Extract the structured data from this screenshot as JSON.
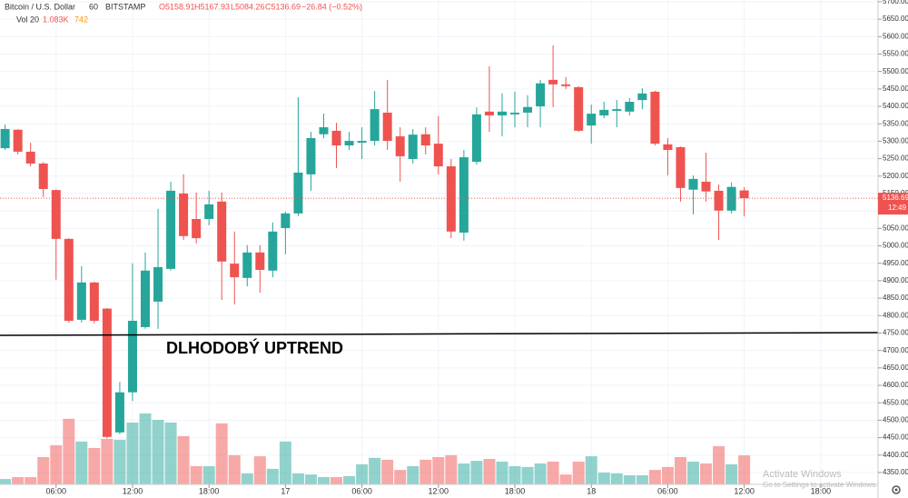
{
  "header": {
    "symbol": "Bitcoin / U.S. Dollar",
    "interval": "60",
    "exchange": "BITSTAMP",
    "open": "O5158.91",
    "high": "H5167.93",
    "low": "L5084.26",
    "close": "C5136.69",
    "change": "−26.84 (−0.52%)",
    "volume_label": "Vol 20",
    "volume_value": "1.083K",
    "volume_ma": "742"
  },
  "chart_data": {
    "type": "candlestick",
    "x": [
      2,
      3,
      4,
      5,
      6,
      7,
      8,
      9,
      10,
      11,
      12,
      13,
      14,
      15,
      16,
      17,
      18,
      19,
      20,
      21,
      22,
      23,
      24,
      25,
      26,
      27,
      28,
      29,
      30,
      31,
      32,
      33,
      34,
      35,
      36,
      37,
      38,
      39,
      40,
      41,
      42,
      43,
      44,
      45,
      46,
      47,
      48,
      49,
      50,
      51,
      52,
      53,
      54,
      55,
      56,
      57,
      58,
      59,
      60
    ],
    "open": [
      5280,
      5333,
      5270,
      5236,
      5160,
      5020,
      4788,
      4895,
      4820,
      4465,
      4580,
      4767,
      4840,
      4934,
      5150,
      5077,
      5077,
      5127,
      4949,
      4908,
      4981,
      4929,
      5051,
      5093,
      5205,
      5320,
      5330,
      5288,
      5296,
      5301,
      5382,
      5314,
      5249,
      5320,
      5293,
      5228,
      5038,
      5241,
      5385,
      5374,
      5377,
      5382,
      5400,
      5476,
      5463,
      5455,
      5345,
      5374,
      5387,
      5385,
      5418,
      5442,
      5291,
      5283,
      5161,
      5184,
      5158,
      5101,
      5158.91
    ],
    "high": [
      5348,
      5335,
      5296,
      5240,
      5162,
      5022,
      4942,
      4897,
      4822,
      4610,
      4950,
      4981,
      5106,
      5184,
      5205,
      5153,
      5158,
      5153,
      5041,
      5002,
      5002,
      5067,
      5098,
      5426,
      5327,
      5379,
      5353,
      5327,
      5340,
      5444,
      5476,
      5340,
      5335,
      5340,
      5372,
      5249,
      5275,
      5397,
      5515,
      5437,
      5442,
      5432,
      5476,
      5575,
      5484,
      5458,
      5405,
      5413,
      5418,
      5424,
      5452,
      5445,
      5309,
      5285,
      5202,
      5267,
      5176,
      5182,
      5167.93
    ],
    "low": [
      5275,
      5262,
      5228,
      5140,
      4903,
      4780,
      4780,
      4778,
      4448,
      4460,
      4555,
      4762,
      4762,
      4929,
      5017,
      5007,
      5059,
      4845,
      4832,
      4884,
      4866,
      4910,
      4976,
      5085,
      5158,
      5309,
      5223,
      5275,
      5249,
      5288,
      5275,
      5184,
      5236,
      5262,
      5205,
      5022,
      5015,
      5233,
      5327,
      5314,
      5340,
      5340,
      5340,
      5398,
      5450,
      5327,
      5293,
      5366,
      5340,
      5374,
      5392,
      5288,
      5202,
      5127,
      5090,
      5127,
      5017,
      5093,
      5084.26
    ],
    "close": [
      5335,
      5270,
      5236,
      5163,
      5020,
      4785,
      4895,
      4785,
      4452,
      4580,
      4785,
      4929,
      4939,
      5158,
      5028,
      5022,
      5119,
      4955,
      4910,
      4981,
      4931,
      5041,
      5093,
      5210,
      5309,
      5340,
      5288,
      5301,
      5301,
      5392,
      5301,
      5257,
      5319,
      5288,
      5228,
      5041,
      5254,
      5377,
      5374,
      5385,
      5382,
      5398,
      5466,
      5463,
      5458,
      5330,
      5379,
      5390,
      5392,
      5413,
      5437,
      5293,
      5275,
      5166,
      5192,
      5156,
      5101,
      5169,
      5136.69
    ],
    "volume": [
      200,
      270,
      270,
      1020,
      1460,
      2450,
      1600,
      1360,
      1700,
      1670,
      2310,
      2650,
      2410,
      2310,
      1800,
      680,
      680,
      2280,
      1090,
      410,
      1050,
      580,
      1600,
      410,
      370,
      270,
      270,
      310,
      750,
      990,
      920,
      540,
      680,
      920,
      1020,
      1090,
      780,
      880,
      950,
      850,
      680,
      650,
      780,
      850,
      370,
      850,
      1050,
      440,
      410,
      340,
      340,
      540,
      650,
      1020,
      850,
      780,
      1430,
      750,
      1083
    ],
    "up_color": "#26a69a",
    "down_color": "#ef5350",
    "xlim": [
      1.6,
      70.5
    ],
    "xticks": [
      {
        "value": 6,
        "label": "06:00"
      },
      {
        "value": 12,
        "label": "12:00"
      },
      {
        "value": 18,
        "label": "18:00"
      },
      {
        "value": 24,
        "label": "17"
      },
      {
        "value": 30,
        "label": "06:00"
      },
      {
        "value": 36,
        "label": "12:00"
      },
      {
        "value": 42,
        "label": "18:00"
      },
      {
        "value": 48,
        "label": "18"
      },
      {
        "value": 54,
        "label": "06:00"
      },
      {
        "value": 60,
        "label": "12:00"
      },
      {
        "value": 66,
        "label": "18:00"
      }
    ],
    "ylim": [
      4316,
      5705
    ],
    "yticks": [
      {
        "value": 4350,
        "label": "4350.00"
      },
      {
        "value": 4400,
        "label": "4400.00"
      },
      {
        "value": 4450,
        "label": "4450.00"
      },
      {
        "value": 4500,
        "label": "4500.00"
      },
      {
        "value": 4550,
        "label": "4550.00"
      },
      {
        "value": 4600,
        "label": "4600.00"
      },
      {
        "value": 4650,
        "label": "4650.00"
      },
      {
        "value": 4700,
        "label": "4700.00"
      },
      {
        "value": 4750,
        "label": "4750.00"
      },
      {
        "value": 4800,
        "label": "4800.00"
      },
      {
        "value": 4850,
        "label": "4850.00"
      },
      {
        "value": 4900,
        "label": "4900.00"
      },
      {
        "value": 4950,
        "label": "4950.00"
      },
      {
        "value": 5000,
        "label": "5000.00"
      },
      {
        "value": 5050,
        "label": "5050.00"
      },
      {
        "value": 5100,
        "label": "5100.00"
      },
      {
        "value": 5150,
        "label": "5150.00"
      },
      {
        "value": 5200,
        "label": "5200.00"
      },
      {
        "value": 5250,
        "label": "5250.00"
      },
      {
        "value": 5300,
        "label": "5300.00"
      },
      {
        "value": 5350,
        "label": "5350.00"
      },
      {
        "value": 5400,
        "label": "5400.00"
      },
      {
        "value": 5450,
        "label": "5450.00"
      },
      {
        "value": 5500,
        "label": "5500.00"
      },
      {
        "value": 5550,
        "label": "5550.00"
      },
      {
        "value": 5600,
        "label": "5600.00"
      },
      {
        "value": 5650,
        "label": "5650.00"
      },
      {
        "value": 5700,
        "label": "5700.00"
      }
    ],
    "y2lim": [
      0,
      18100
    ],
    "grid": true,
    "last_price": 5136.69,
    "countdown": "12:49",
    "annotation": "DLHODOBÝ UPTREND"
  },
  "watermark": {
    "title": "Activate Windows",
    "subtitle": "Go to Settings to activate Windows."
  }
}
